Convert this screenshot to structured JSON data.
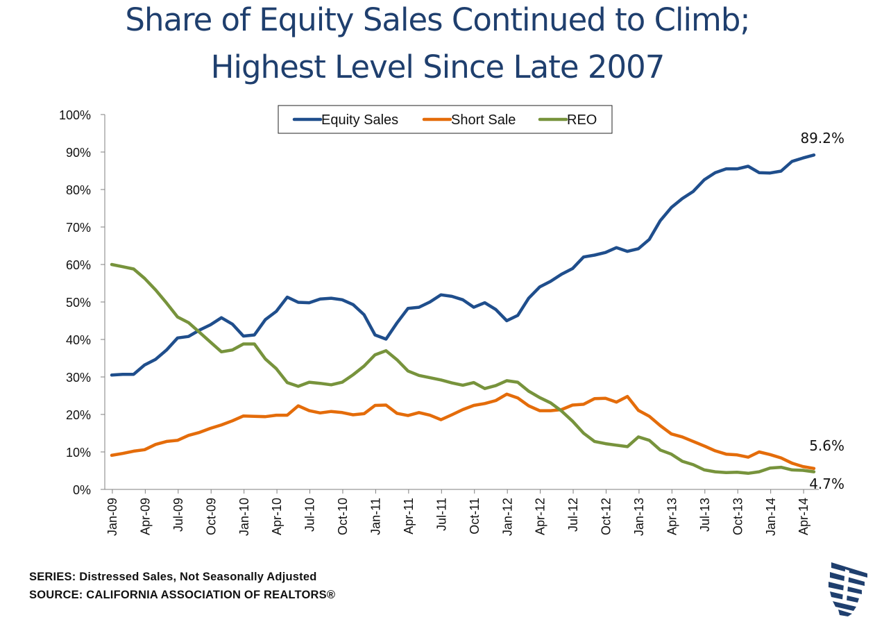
{
  "title_line1": "Share of Equity Sales Continued to Climb;",
  "title_line2": "Highest Level Since Late 2007",
  "footnote_series": "SERIES: Distressed Sales, Not Seasonally Adjusted",
  "footnote_source": "SOURCE:  CALIFORNIA ASSOCIATION OF REALTORS®",
  "colors": {
    "equity": "#1f4e8c",
    "short": "#e46c0a",
    "reo": "#77933c",
    "title": "#1f3f6e"
  },
  "chart_data": {
    "type": "line",
    "ylim": [
      0,
      100
    ],
    "ytick_labels": [
      "0%",
      "10%",
      "20%",
      "30%",
      "40%",
      "50%",
      "60%",
      "70%",
      "80%",
      "90%",
      "100%"
    ],
    "xtick_labels": [
      "Jan-09",
      "Apr-09",
      "Jul-09",
      "Oct-09",
      "Jan-10",
      "Apr-10",
      "Jul-10",
      "Oct-10",
      "Jan-11",
      "Apr-11",
      "Jul-11",
      "Oct-11",
      "Jan-12",
      "Apr-12",
      "Jul-12",
      "Oct-12",
      "Jan-13",
      "Apr-13",
      "Jul-13",
      "Oct-13",
      "Jan-14",
      "Apr-14"
    ],
    "x": [
      "Jan-09",
      "Feb-09",
      "Mar-09",
      "Apr-09",
      "May-09",
      "Jun-09",
      "Jul-09",
      "Aug-09",
      "Sep-09",
      "Oct-09",
      "Nov-09",
      "Dec-09",
      "Jan-10",
      "Feb-10",
      "Mar-10",
      "Apr-10",
      "May-10",
      "Jun-10",
      "Jul-10",
      "Aug-10",
      "Sep-10",
      "Oct-10",
      "Nov-10",
      "Dec-10",
      "Jan-11",
      "Feb-11",
      "Mar-11",
      "Apr-11",
      "May-11",
      "Jun-11",
      "Jul-11",
      "Aug-11",
      "Sep-11",
      "Oct-11",
      "Nov-11",
      "Dec-11",
      "Jan-12",
      "Feb-12",
      "Mar-12",
      "Apr-12",
      "May-12",
      "Jun-12",
      "Jul-12",
      "Aug-12",
      "Sep-12",
      "Oct-12",
      "Nov-12",
      "Dec-12",
      "Jan-13",
      "Feb-13",
      "Mar-13",
      "Apr-13",
      "May-13",
      "Jun-13",
      "Jul-13",
      "Aug-13",
      "Sep-13",
      "Oct-13",
      "Nov-13",
      "Dec-13",
      "Jan-14",
      "Feb-14",
      "Mar-14",
      "Apr-14",
      "May-14"
    ],
    "grid": false,
    "legend": "top-center",
    "series": [
      {
        "name": "Equity Sales",
        "color": "#1f4e8c",
        "values": [
          30.5,
          30.7,
          30.7,
          33.2,
          34.7,
          37.2,
          40.4,
          40.8,
          42.5,
          43.9,
          45.8,
          44.1,
          40.9,
          41.2,
          45.3,
          47.5,
          51.3,
          49.9,
          49.8,
          50.8,
          51.0,
          50.6,
          49.3,
          46.6,
          41.2,
          40.1,
          44.4,
          48.3,
          48.6,
          50.0,
          51.9,
          51.5,
          50.6,
          48.6,
          49.8,
          48.0,
          45.0,
          46.4,
          51.0,
          54.0,
          55.5,
          57.4,
          58.9,
          62.0,
          62.5,
          63.2,
          64.5,
          63.5,
          64.2,
          66.7,
          71.7,
          75.2,
          77.6,
          79.5,
          82.6,
          84.5,
          85.5,
          85.5,
          86.2,
          84.5,
          84.4,
          84.9,
          87.5,
          88.4,
          89.2
        ]
      },
      {
        "name": "Short Sale",
        "color": "#e46c0a",
        "values": [
          9.1,
          9.6,
          10.2,
          10.6,
          12.0,
          12.8,
          13.1,
          14.4,
          15.2,
          16.3,
          17.2,
          18.3,
          19.6,
          19.5,
          19.4,
          19.8,
          19.8,
          22.3,
          21.0,
          20.4,
          20.8,
          20.5,
          19.9,
          20.2,
          22.4,
          22.5,
          20.3,
          19.7,
          20.5,
          19.8,
          18.6,
          19.9,
          21.3,
          22.4,
          22.9,
          23.7,
          25.4,
          24.4,
          22.3,
          21.0,
          21.0,
          21.3,
          22.5,
          22.7,
          24.2,
          24.3,
          23.3,
          24.8,
          21.1,
          19.5,
          17.0,
          14.8,
          14.0,
          12.8,
          11.6,
          10.3,
          9.4,
          9.2,
          8.6,
          10.0,
          9.3,
          8.4,
          7.0,
          6.1,
          5.6
        ]
      },
      {
        "name": "REO",
        "color": "#77933c",
        "values": [
          60.0,
          59.4,
          58.8,
          56.3,
          53.2,
          49.7,
          46.0,
          44.5,
          41.9,
          39.3,
          36.7,
          37.2,
          38.8,
          38.8,
          34.8,
          32.2,
          28.5,
          27.5,
          28.6,
          28.3,
          27.9,
          28.6,
          30.6,
          32.9,
          35.9,
          37.0,
          34.6,
          31.6,
          30.4,
          29.8,
          29.2,
          28.4,
          27.8,
          28.5,
          26.9,
          27.7,
          29.0,
          28.6,
          26.2,
          24.5,
          23.1,
          20.9,
          18.2,
          15.0,
          12.8,
          12.2,
          11.8,
          11.4,
          14.0,
          13.1,
          10.5,
          9.4,
          7.5,
          6.6,
          5.2,
          4.7,
          4.5,
          4.6,
          4.3,
          4.7,
          5.7,
          5.9,
          5.2,
          5.1,
          4.7
        ]
      }
    ],
    "annotations": [
      {
        "series": "Equity Sales",
        "text": "89.2%"
      },
      {
        "series": "Short Sale",
        "text": "5.6%"
      },
      {
        "series": "REO",
        "text": "4.7%"
      }
    ]
  }
}
